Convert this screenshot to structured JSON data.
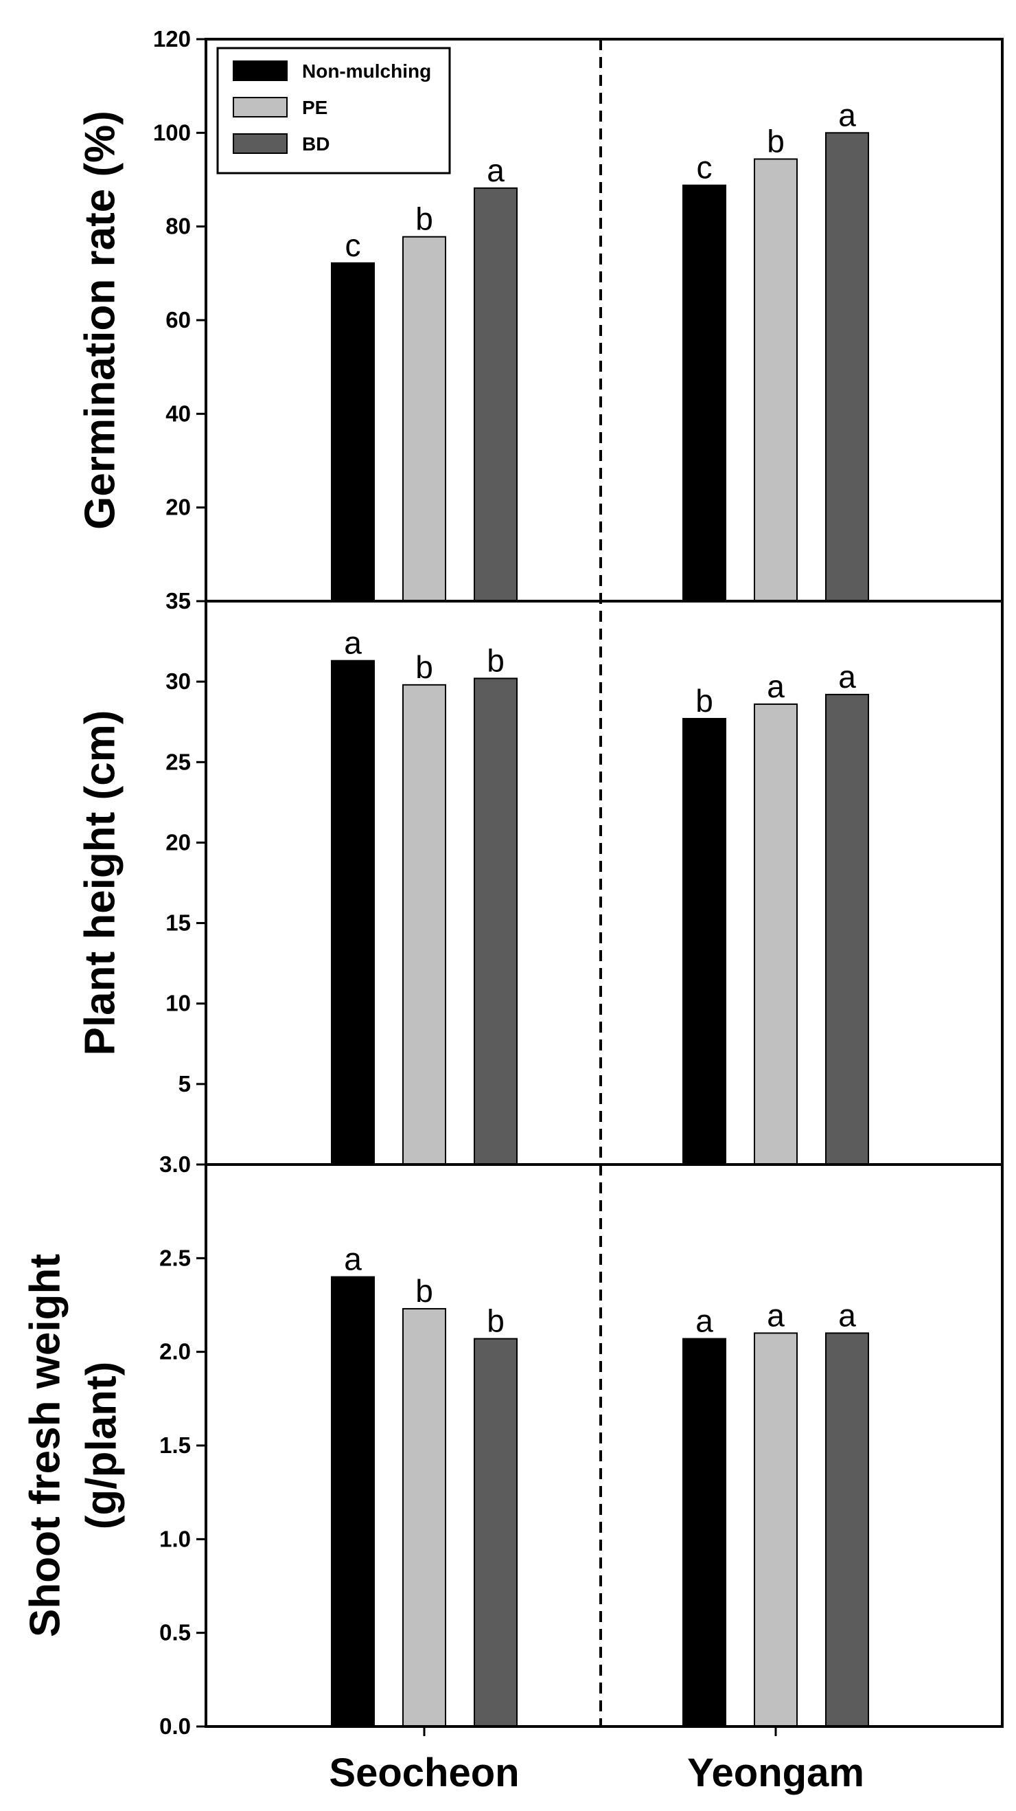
{
  "chart_data": {
    "type": "bar",
    "categories": [
      "Seocheon",
      "Yeongam"
    ],
    "legend": {
      "placement": "top-left",
      "entries": [
        "Non-mulching",
        "PE",
        "BD"
      ],
      "colors": [
        "#000000",
        "#c0c0c0",
        "#5c5c5c"
      ]
    },
    "panels": [
      {
        "id": "germination",
        "ylabel": [
          "Germination rate (%)"
        ],
        "ylim": [
          0,
          120
        ],
        "ticks": [
          20,
          40,
          60,
          80,
          100
        ],
        "tick_labels": [
          "20",
          "40",
          "60",
          "80",
          "100"
        ],
        "top_label": "120",
        "series": [
          {
            "name": "Non-mulching",
            "values": [
              72.2,
              88.8
            ],
            "letters": [
              "c",
              "c"
            ]
          },
          {
            "name": "PE",
            "values": [
              77.8,
              94.4
            ],
            "letters": [
              "b",
              "b"
            ]
          },
          {
            "name": "BD",
            "values": [
              88.2,
              100.0
            ],
            "letters": [
              "a",
              "a"
            ]
          }
        ]
      },
      {
        "id": "height",
        "ylabel": [
          "Plant height (cm)"
        ],
        "ylim": [
          0,
          35
        ],
        "ticks": [
          5,
          10,
          15,
          20,
          25,
          30
        ],
        "tick_labels": [
          "5",
          "10",
          "15",
          "20",
          "25",
          "30"
        ],
        "top_label": "35",
        "series": [
          {
            "name": "Non-mulching",
            "values": [
              31.3,
              27.7
            ],
            "letters": [
              "a",
              "b"
            ]
          },
          {
            "name": "PE",
            "values": [
              29.8,
              28.6
            ],
            "letters": [
              "b",
              "a"
            ]
          },
          {
            "name": "BD",
            "values": [
              30.2,
              29.2
            ],
            "letters": [
              "b",
              "a"
            ]
          }
        ]
      },
      {
        "id": "shoot",
        "ylabel": [
          "Shoot fresh weight",
          "(g/plant)"
        ],
        "ylim": [
          0,
          3.0
        ],
        "ticks": [
          0.0,
          0.5,
          1.0,
          1.5,
          2.0,
          2.5
        ],
        "tick_labels": [
          "0.0",
          "0.5",
          "1.0",
          "1.5",
          "2.0",
          "2.5"
        ],
        "top_label": "3.0",
        "series": [
          {
            "name": "Non-mulching",
            "values": [
              2.4,
              2.07
            ],
            "letters": [
              "a",
              "a"
            ]
          },
          {
            "name": "PE",
            "values": [
              2.23,
              2.1
            ],
            "letters": [
              "b",
              "a"
            ]
          },
          {
            "name": "BD",
            "values": [
              2.07,
              2.1
            ],
            "letters": [
              "b",
              "a"
            ]
          }
        ]
      }
    ]
  }
}
